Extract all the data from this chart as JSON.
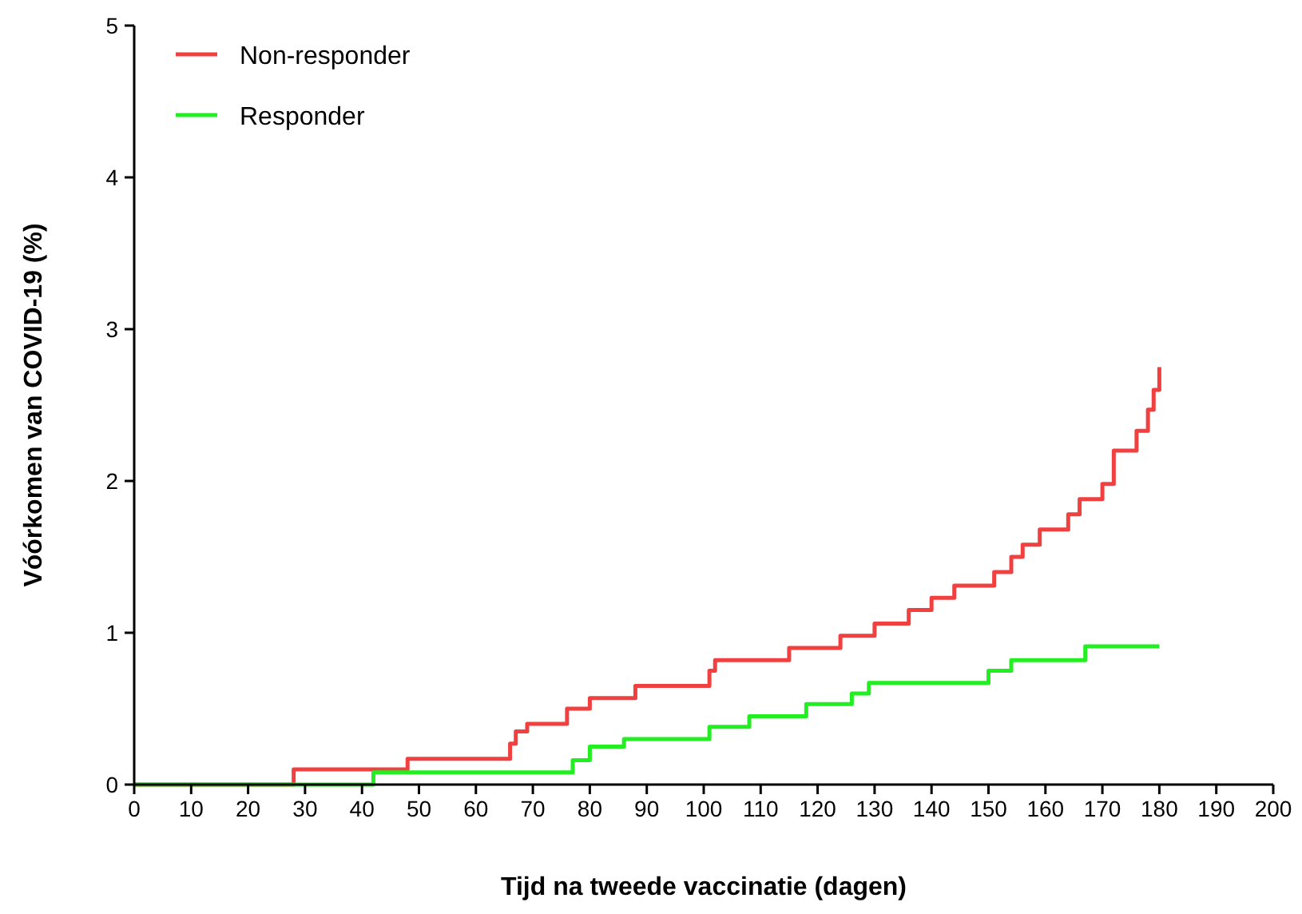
{
  "chart_data": {
    "type": "step",
    "xlabel": "Tijd na tweede vaccinatie (dagen)",
    "ylabel": "Vóórkomen van COVID-19 (%)",
    "xlim": [
      0,
      200
    ],
    "ylim": [
      0,
      5
    ],
    "xticks": [
      0,
      10,
      20,
      30,
      40,
      50,
      60,
      70,
      80,
      90,
      100,
      110,
      120,
      130,
      140,
      150,
      160,
      170,
      180,
      190,
      200
    ],
    "yticks": [
      0,
      1,
      2,
      3,
      4,
      5
    ],
    "grid": false,
    "legend": "top left",
    "line_style": "solid",
    "series": [
      {
        "name": "Non-responder",
        "color": "#f04040",
        "x": [
          0,
          28,
          48,
          66,
          67,
          69,
          76,
          80,
          88,
          101,
          102,
          115,
          124,
          130,
          136,
          140,
          144,
          151,
          154,
          156,
          159,
          164,
          166,
          170,
          172,
          176,
          178,
          179,
          180
        ],
        "values": [
          0,
          0.1,
          0.17,
          0.27,
          0.35,
          0.4,
          0.5,
          0.57,
          0.65,
          0.75,
          0.82,
          0.9,
          0.98,
          1.06,
          1.15,
          1.23,
          1.31,
          1.4,
          1.5,
          1.58,
          1.68,
          1.78,
          1.88,
          1.98,
          2.2,
          2.33,
          2.47,
          2.6,
          2.75
        ]
      },
      {
        "name": "Responder",
        "color": "#22ee22",
        "x": [
          0,
          42,
          77,
          80,
          86,
          101,
          108,
          118,
          126,
          129,
          150,
          154,
          167,
          180
        ],
        "values": [
          0,
          0.08,
          0.16,
          0.25,
          0.3,
          0.38,
          0.45,
          0.53,
          0.6,
          0.67,
          0.75,
          0.82,
          0.91,
          0.91
        ]
      }
    ]
  }
}
